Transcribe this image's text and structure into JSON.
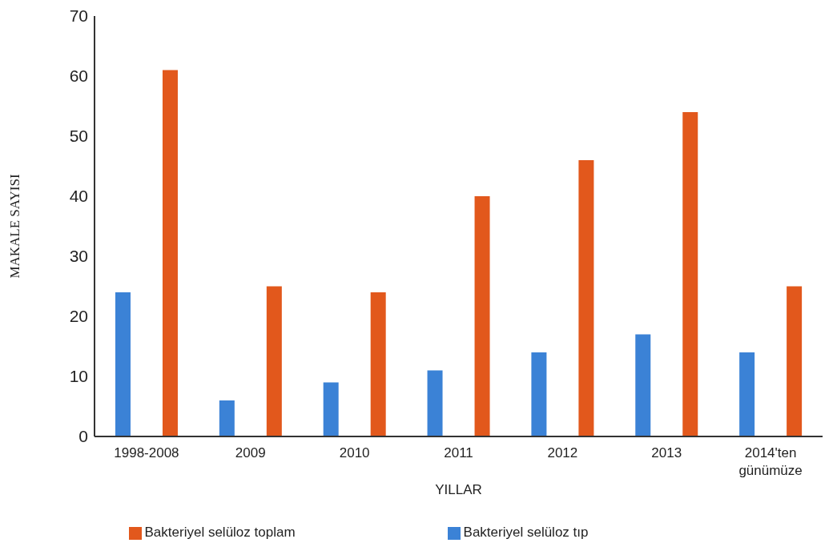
{
  "chart_data": {
    "type": "bar",
    "xlabel": "YILLAR",
    "ylabel": "MAKALE SAYISI",
    "categories": [
      "1998-2008",
      "2009",
      "2010",
      "2011",
      "2012",
      "2013",
      "2014'ten günümüze"
    ],
    "series": [
      {
        "name": "Bakteriyel selüloz tıp",
        "color": "#3b82d6",
        "values": [
          24,
          6,
          9,
          11,
          14,
          17,
          14
        ]
      },
      {
        "name": "Bakteriyel selüloz toplam",
        "color": "#e2581c",
        "values": [
          61,
          25,
          24,
          40,
          46,
          54,
          25
        ]
      }
    ],
    "ylim": [
      0,
      70
    ],
    "yticks": [
      0,
      10,
      20,
      30,
      40,
      50,
      60,
      70
    ],
    "grid": false,
    "legend": "bottom"
  }
}
